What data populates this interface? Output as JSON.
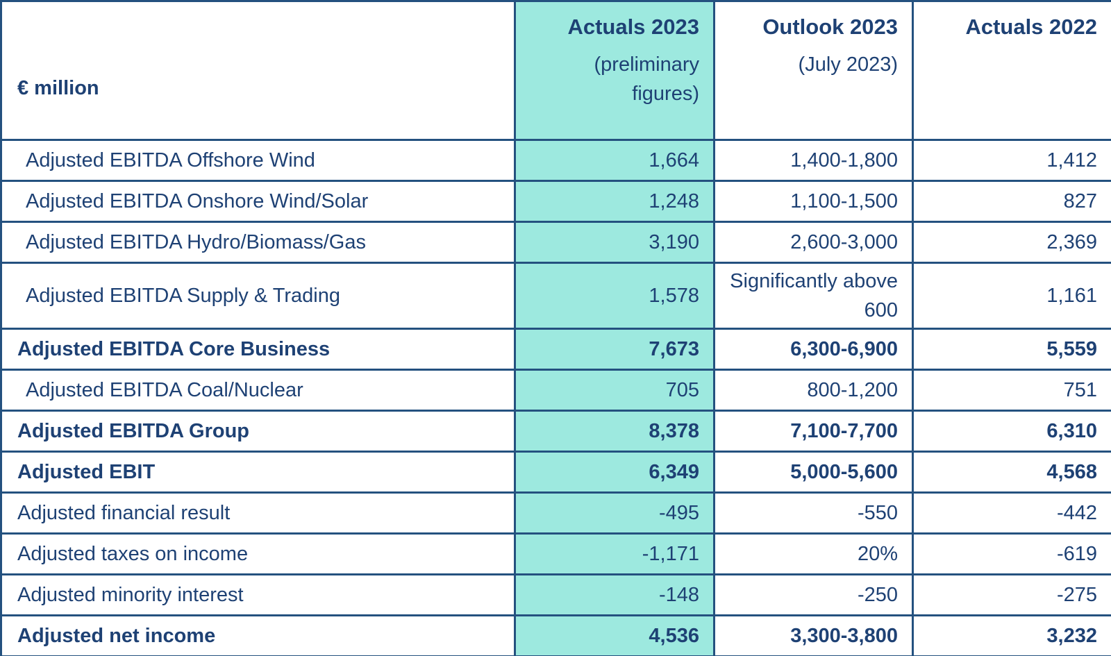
{
  "chart_data": {
    "type": "table",
    "unit_label": "€ million",
    "columns": [
      {
        "title": "Actuals 2023",
        "subtitle": "(preliminary figures)",
        "highlighted": true
      },
      {
        "title": "Outlook 2023",
        "subtitle": "(July 2023)",
        "highlighted": false
      },
      {
        "title": "Actuals 2022",
        "subtitle": "",
        "highlighted": false
      }
    ],
    "rows": [
      {
        "label": "Adjusted EBITDA Offshore Wind",
        "values": [
          "1,664",
          "1,400-1,800",
          "1,412"
        ],
        "emphasis": false,
        "indented": true
      },
      {
        "label": "Adjusted EBITDA Onshore Wind/Solar",
        "values": [
          "1,248",
          "1,100-1,500",
          "827"
        ],
        "emphasis": false,
        "indented": true
      },
      {
        "label": "Adjusted EBITDA Hydro/Biomass/Gas",
        "values": [
          "3,190",
          "2,600-3,000",
          "2,369"
        ],
        "emphasis": false,
        "indented": true
      },
      {
        "label": "Adjusted EBITDA Supply & Trading",
        "values": [
          "1,578",
          "Significantly above 600",
          "1,161"
        ],
        "emphasis": false,
        "indented": true
      },
      {
        "label": "Adjusted EBITDA Core Business",
        "values": [
          "7,673",
          "6,300-6,900",
          "5,559"
        ],
        "emphasis": true,
        "indented": false
      },
      {
        "label": "Adjusted EBITDA Coal/Nuclear",
        "values": [
          "705",
          "800-1,200",
          "751"
        ],
        "emphasis": false,
        "indented": true
      },
      {
        "label": "Adjusted EBITDA Group",
        "values": [
          "8,378",
          "7,100-7,700",
          "6,310"
        ],
        "emphasis": true,
        "indented": false
      },
      {
        "label": "Adjusted EBIT",
        "values": [
          "6,349",
          "5,000-5,600",
          "4,568"
        ],
        "emphasis": true,
        "indented": false
      },
      {
        "label": "Adjusted financial result",
        "values": [
          "-495",
          "-550",
          "-442"
        ],
        "emphasis": false,
        "indented": false
      },
      {
        "label": "Adjusted taxes on income",
        "values": [
          "-1,171",
          "20%",
          "-619"
        ],
        "emphasis": false,
        "indented": false
      },
      {
        "label": "Adjusted minority interest",
        "values": [
          "-148",
          "-250",
          "-275"
        ],
        "emphasis": false,
        "indented": false
      },
      {
        "label": "Adjusted net income",
        "values": [
          "4,536",
          "3,300-3,800",
          "3,232"
        ],
        "emphasis": true,
        "indented": false
      }
    ]
  },
  "colors": {
    "highlight_column_bg": "#9DE9DF",
    "text_navy": "#1E4174",
    "border_navy": "#24517F",
    "background": "#FFFFFF"
  }
}
